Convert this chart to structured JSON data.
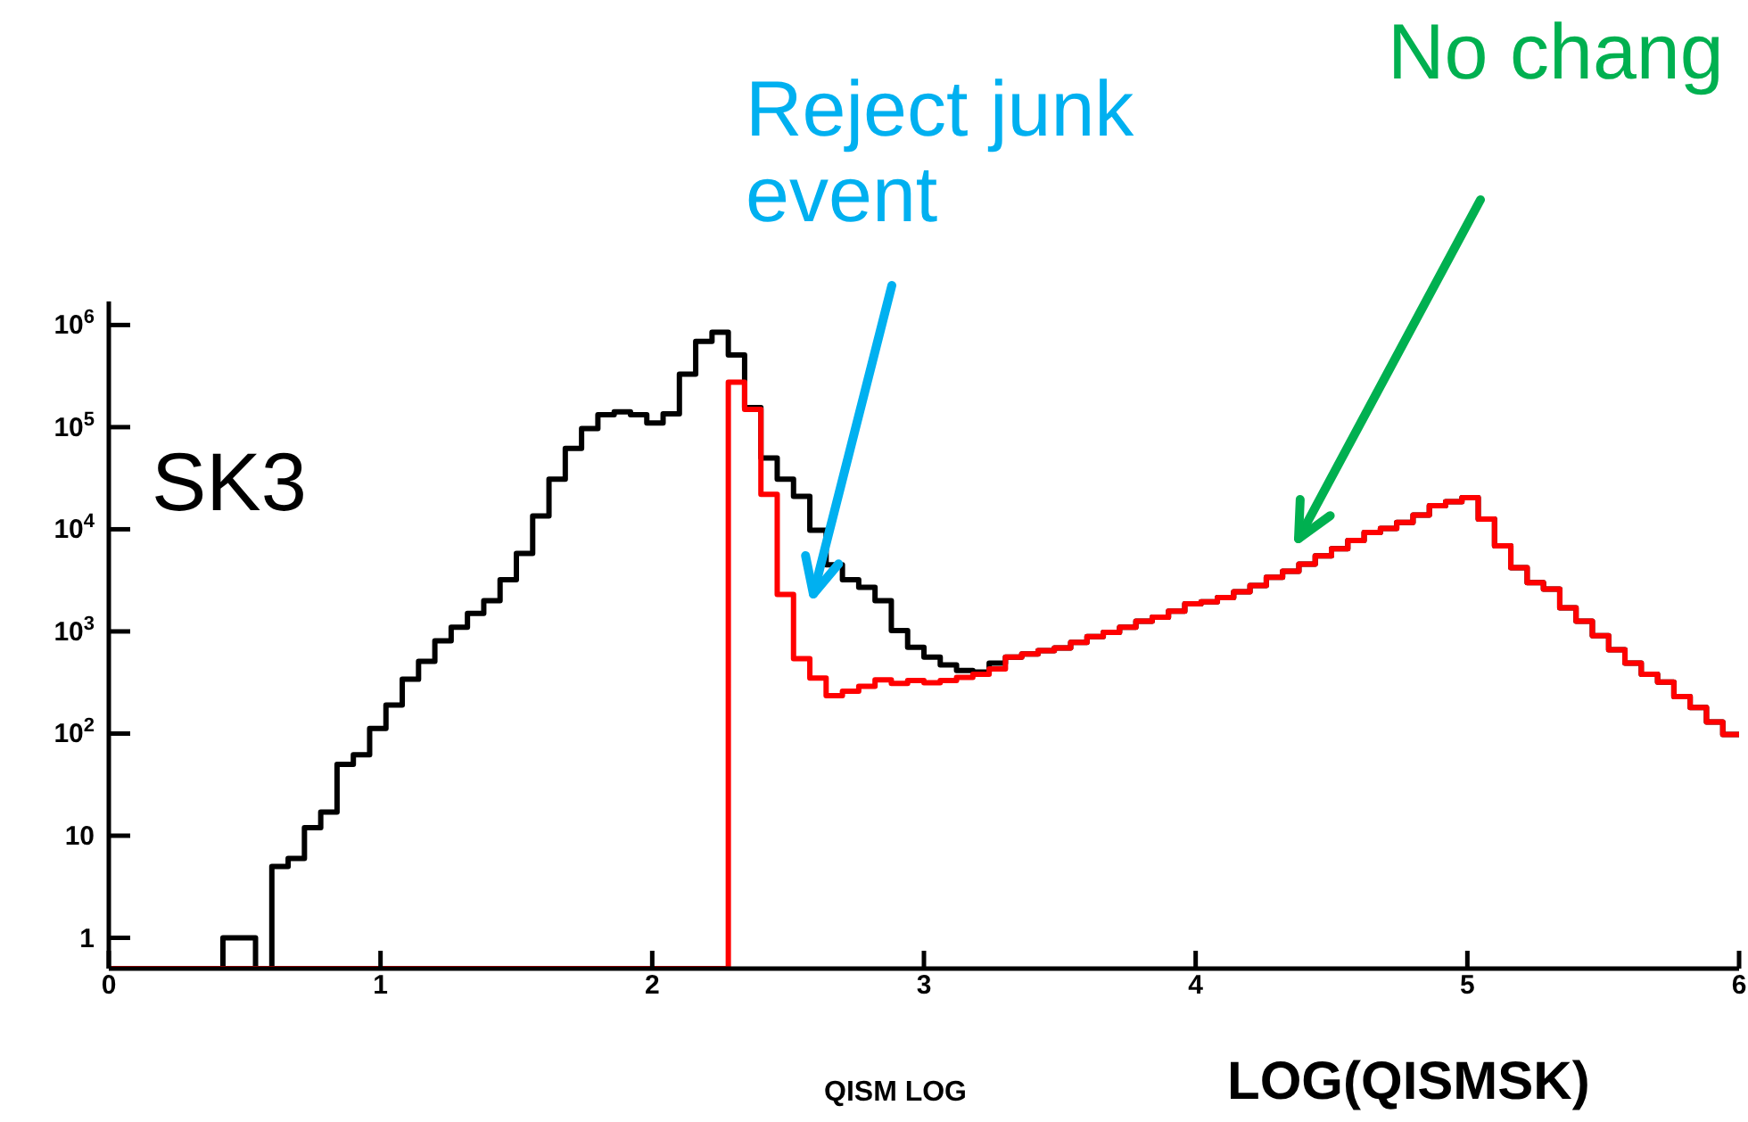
{
  "chart_data": {
    "type": "histogram",
    "xlabel": "LOG(QISMSK)",
    "log": true,
    "bins": [
      0,
      0.06,
      0.12,
      0.18,
      0.24,
      0.3,
      0.36,
      0.42,
      0.48,
      0.54,
      0.6,
      0.66,
      0.72,
      0.78,
      0.84,
      0.9,
      0.96,
      1.02,
      1.08,
      1.14,
      1.2,
      1.26,
      1.32,
      1.38,
      1.44,
      1.5,
      1.56,
      1.62,
      1.68,
      1.74,
      1.8,
      1.86,
      1.92,
      1.98,
      2.04,
      2.1,
      2.16,
      2.22,
      2.28,
      2.34,
      2.4,
      2.46,
      2.52,
      2.58,
      2.64,
      2.7,
      2.76,
      2.82,
      2.88,
      2.94,
      3,
      3.06,
      3.12,
      3.18,
      3.24,
      3.3,
      3.36,
      3.42,
      3.48,
      3.54,
      3.6,
      3.66,
      3.72,
      3.78,
      3.84,
      3.9,
      3.96,
      4.02,
      4.08,
      4.14,
      4.2,
      4.26,
      4.32,
      4.38,
      4.44,
      4.5,
      4.56,
      4.62,
      4.68,
      4.74,
      4.8,
      4.86,
      4.92,
      4.98,
      5.04,
      5.1,
      5.16,
      5.22,
      5.28,
      5.34,
      5.4,
      5.46,
      5.52,
      5.58,
      5.64,
      5.7,
      5.76,
      5.82,
      5.88,
      5.94,
      6
    ],
    "series": [
      {
        "color": "#000000",
        "values": [
          null,
          null,
          null,
          null,
          null,
          null,
          null,
          1,
          1,
          null,
          5,
          6,
          12,
          17,
          50,
          62,
          112,
          190,
          340,
          510,
          810,
          1100,
          1500,
          2000,
          3200,
          5800,
          13500,
          31000,
          62000,
          97000,
          132000,
          141000,
          132000,
          110000,
          135000,
          330000,
          690000,
          850000,
          510000,
          155000,
          50000,
          31000,
          21000,
          9800,
          4500,
          3200,
          2700,
          2000,
          1020,
          700,
          560,
          470,
          415,
          400,
          490,
          560,
          600,
          650,
          690,
          780,
          890,
          980,
          1100,
          1260,
          1380,
          1580,
          1860,
          1950,
          2140,
          2450,
          2820,
          3390,
          3890,
          4570,
          5500,
          6460,
          7760,
          9330,
          10200,
          11700,
          13800,
          17000,
          18600,
          20400,
          12600,
          6900,
          4200,
          3000,
          2600,
          1700,
          1260,
          910,
          660,
          490,
          380,
          320,
          230,
          180,
          130,
          98
        ]
      },
      {
        "color": "#ff0000",
        "values": [
          null,
          null,
          null,
          null,
          null,
          null,
          null,
          null,
          null,
          null,
          null,
          null,
          null,
          null,
          null,
          null,
          null,
          null,
          null,
          null,
          null,
          null,
          null,
          null,
          null,
          null,
          null,
          null,
          null,
          null,
          null,
          null,
          null,
          null,
          null,
          null,
          null,
          null,
          275000,
          149000,
          22000,
          2300,
          540,
          350,
          235,
          260,
          290,
          335,
          310,
          330,
          315,
          330,
          355,
          380,
          430,
          560,
          600,
          650,
          690,
          780,
          890,
          980,
          1100,
          1260,
          1380,
          1580,
          1860,
          1950,
          2140,
          2450,
          2820,
          3390,
          3890,
          4570,
          5500,
          6460,
          7760,
          9330,
          10200,
          11700,
          13800,
          17000,
          18600,
          20400,
          12600,
          6900,
          4200,
          3000,
          2600,
          1700,
          1260,
          910,
          660,
          490,
          380,
          320,
          230,
          180,
          130,
          98
        ]
      }
    ],
    "xlim": [
      0,
      6
    ],
    "xticks": [
      0,
      1,
      2,
      3,
      4,
      5,
      6
    ],
    "ylim": [
      0.5,
      1700000
    ],
    "yticks": [
      1,
      10,
      {
        "value": 100,
        "label": "10$^{2}$"
      },
      {
        "value": 1000,
        "label": "10$^{3}$"
      },
      {
        "value": 10000,
        "label": "10$^{4}$"
      },
      {
        "value": 100000,
        "label": "10$^{5}$"
      },
      {
        "value": 1000000,
        "label": "10$^{6}$"
      }
    ],
    "annotations": [
      "SK3",
      "QISM LOG",
      "Reject junk event",
      "No chang"
    ]
  }
}
